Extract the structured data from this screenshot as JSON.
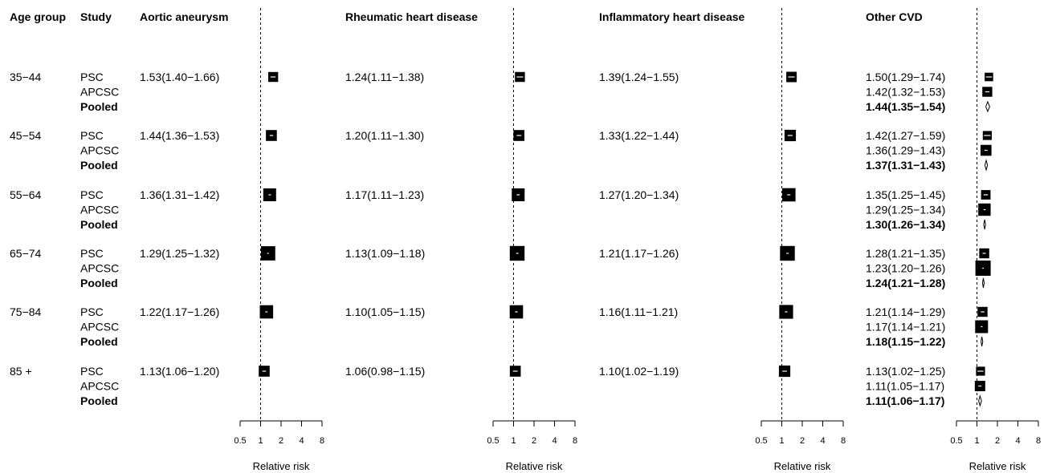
{
  "headers": {
    "age_group": "Age group",
    "study": "Study"
  },
  "chart_data": {
    "type": "forest",
    "x_scale": "log2",
    "xlim": [
      0.5,
      8
    ],
    "reference_line": 1,
    "xticks": [
      0.5,
      1,
      2,
      4,
      8
    ],
    "tick_labels": [
      "0.5",
      "1",
      "2",
      "4",
      "8"
    ],
    "xlabel": "Relative risk",
    "age_groups": [
      "35−44",
      "45−54",
      "55−64",
      "65−74",
      "75−84",
      "85 +"
    ],
    "study_labels": [
      "PSC",
      "APCSC",
      "Pooled"
    ],
    "panels": [
      {
        "title": "Aortic aneurysm",
        "rows": [
          [
            {
              "label": "1.53(1.40−1.66)",
              "est": 1.53,
              "lo": 1.4,
              "hi": 1.66,
              "w": 0.45
            }
          ],
          [
            {
              "label": "1.44(1.36−1.53)",
              "est": 1.44,
              "lo": 1.36,
              "hi": 1.53,
              "w": 0.55
            }
          ],
          [
            {
              "label": "1.36(1.31−1.42)",
              "est": 1.36,
              "lo": 1.31,
              "hi": 1.42,
              "w": 0.75
            }
          ],
          [
            {
              "label": "1.29(1.25−1.32)",
              "est": 1.29,
              "lo": 1.25,
              "hi": 1.32,
              "w": 0.9
            }
          ],
          [
            {
              "label": "1.22(1.17−1.26)",
              "est": 1.22,
              "lo": 1.17,
              "hi": 1.26,
              "w": 0.8
            }
          ],
          [
            {
              "label": "1.13(1.06−1.20)",
              "est": 1.13,
              "lo": 1.06,
              "hi": 1.2,
              "w": 0.55
            }
          ]
        ]
      },
      {
        "title": "Rheumatic heart disease",
        "rows": [
          [
            {
              "label": "1.24(1.11−1.38)",
              "est": 1.24,
              "lo": 1.11,
              "hi": 1.38,
              "w": 0.45
            }
          ],
          [
            {
              "label": "1.20(1.11−1.30)",
              "est": 1.2,
              "lo": 1.11,
              "hi": 1.3,
              "w": 0.55
            }
          ],
          [
            {
              "label": "1.17(1.11−1.23)",
              "est": 1.17,
              "lo": 1.11,
              "hi": 1.23,
              "w": 0.75
            }
          ],
          [
            {
              "label": "1.13(1.09−1.18)",
              "est": 1.13,
              "lo": 1.09,
              "hi": 1.18,
              "w": 0.95
            }
          ],
          [
            {
              "label": "1.10(1.05−1.15)",
              "est": 1.1,
              "lo": 1.05,
              "hi": 1.15,
              "w": 0.8
            }
          ],
          [
            {
              "label": "1.06(0.98−1.15)",
              "est": 1.06,
              "lo": 0.98,
              "hi": 1.15,
              "w": 0.55
            }
          ]
        ]
      },
      {
        "title": "Inflammatory heart disease",
        "rows": [
          [
            {
              "label": "1.39(1.24−1.55)",
              "est": 1.39,
              "lo": 1.24,
              "hi": 1.55,
              "w": 0.5
            }
          ],
          [
            {
              "label": "1.33(1.22−1.44)",
              "est": 1.33,
              "lo": 1.22,
              "hi": 1.44,
              "w": 0.6
            }
          ],
          [
            {
              "label": "1.27(1.20−1.34)",
              "est": 1.27,
              "lo": 1.2,
              "hi": 1.34,
              "w": 0.8
            }
          ],
          [
            {
              "label": "1.21(1.17−1.26)",
              "est": 1.21,
              "lo": 1.17,
              "hi": 1.26,
              "w": 0.95
            }
          ],
          [
            {
              "label": "1.16(1.11−1.21)",
              "est": 1.16,
              "lo": 1.11,
              "hi": 1.21,
              "w": 0.85
            }
          ],
          [
            {
              "label": "1.10(1.02−1.19)",
              "est": 1.1,
              "lo": 1.02,
              "hi": 1.19,
              "w": 0.6
            }
          ]
        ]
      },
      {
        "title": "Other CVD",
        "rows": [
          [
            {
              "label": "1.50(1.29−1.74)",
              "est": 1.5,
              "lo": 1.29,
              "hi": 1.74,
              "w": 0.3
            },
            {
              "label": "1.42(1.32−1.53)",
              "est": 1.42,
              "lo": 1.32,
              "hi": 1.53,
              "w": 0.45
            },
            {
              "label": "1.44(1.35−1.54)",
              "est": 1.44,
              "lo": 1.35,
              "hi": 1.54,
              "pooled": true
            }
          ],
          [
            {
              "label": "1.42(1.27−1.59)",
              "est": 1.42,
              "lo": 1.27,
              "hi": 1.59,
              "w": 0.35
            },
            {
              "label": "1.36(1.29−1.43)",
              "est": 1.36,
              "lo": 1.29,
              "hi": 1.43,
              "w": 0.55
            },
            {
              "label": "1.37(1.31−1.43)",
              "est": 1.37,
              "lo": 1.31,
              "hi": 1.43,
              "pooled": true
            }
          ],
          [
            {
              "label": "1.35(1.25−1.45)",
              "est": 1.35,
              "lo": 1.25,
              "hi": 1.45,
              "w": 0.4
            },
            {
              "label": "1.29(1.25−1.34)",
              "est": 1.29,
              "lo": 1.25,
              "hi": 1.34,
              "w": 0.7
            },
            {
              "label": "1.30(1.26−1.34)",
              "est": 1.3,
              "lo": 1.26,
              "hi": 1.34,
              "pooled": true
            }
          ],
          [
            {
              "label": "1.28(1.21−1.35)",
              "est": 1.28,
              "lo": 1.21,
              "hi": 1.35,
              "w": 0.45
            },
            {
              "label": "1.23(1.20−1.26)",
              "est": 1.23,
              "lo": 1.2,
              "hi": 1.26,
              "w": 1.0
            },
            {
              "label": "1.24(1.21−1.28)",
              "est": 1.24,
              "lo": 1.21,
              "hi": 1.28,
              "pooled": true
            }
          ],
          [
            {
              "label": "1.21(1.14−1.29)",
              "est": 1.21,
              "lo": 1.14,
              "hi": 1.29,
              "w": 0.45
            },
            {
              "label": "1.17(1.14−1.21)",
              "est": 1.17,
              "lo": 1.14,
              "hi": 1.21,
              "w": 0.75
            },
            {
              "label": "1.18(1.15−1.22)",
              "est": 1.18,
              "lo": 1.15,
              "hi": 1.22,
              "pooled": true
            }
          ],
          [
            {
              "label": "1.13(1.02−1.25)",
              "est": 1.13,
              "lo": 1.02,
              "hi": 1.25,
              "w": 0.35
            },
            {
              "label": "1.11(1.05−1.17)",
              "est": 1.11,
              "lo": 1.05,
              "hi": 1.17,
              "w": 0.5
            },
            {
              "label": "1.11(1.06−1.17)",
              "est": 1.11,
              "lo": 1.06,
              "hi": 1.17,
              "pooled": true
            }
          ]
        ]
      }
    ]
  }
}
